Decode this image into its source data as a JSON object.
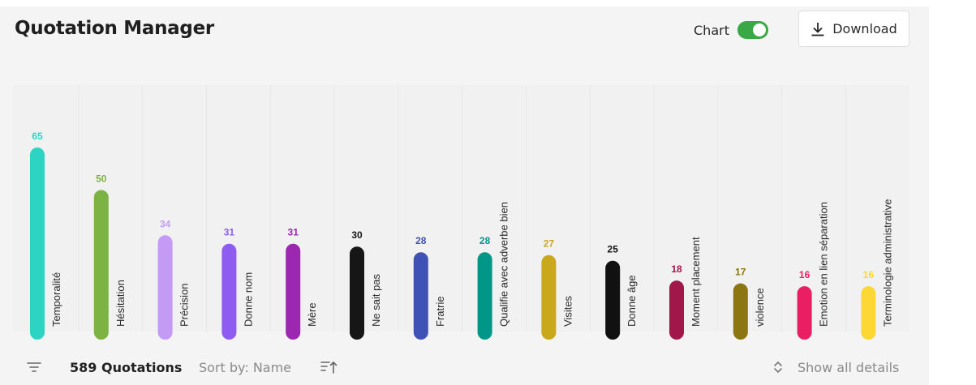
{
  "header": {
    "title": "Quotation Manager",
    "chart_toggle_label": "Chart",
    "chart_toggle_on": true,
    "download_label": "Download"
  },
  "footer": {
    "count_label": "589 Quotations",
    "sort_label": "Sort by: Name",
    "details_label": "Show all details"
  },
  "icons": {
    "download": "download-icon",
    "filter": "filter-icon",
    "sort": "sort-ascending-icon",
    "details": "expand-collapse-icon"
  },
  "colors": {
    "toggle_on": "#39a845",
    "background": "#f4f4f4"
  },
  "chart_data": {
    "type": "bar",
    "title": "",
    "xlabel": "",
    "ylabel": "",
    "ylim": [
      0,
      65
    ],
    "grid": false,
    "legend": "none",
    "categories": [
      "Temporalité",
      "Hésitation",
      "Précision",
      "Donne nom",
      "Mère",
      "Ne sait pas",
      "Fratrie",
      "Qualifie avec adverbe bien",
      "Visites",
      "Donne âge",
      "Moment placement",
      "violence",
      "Emotion en lien séparation",
      "Terminologie administrative"
    ],
    "values": [
      65,
      50,
      34,
      31,
      31,
      30,
      28,
      28,
      27,
      25,
      18,
      17,
      16,
      16
    ],
    "colors": [
      "#2dd4c4",
      "#7cb342",
      "#c39bf5",
      "#8e5cf0",
      "#9c27b0",
      "#161616",
      "#3f51b5",
      "#009688",
      "#c9a81c",
      "#111111",
      "#a0184a",
      "#8b7611",
      "#e91e63",
      "#fdd835"
    ]
  }
}
